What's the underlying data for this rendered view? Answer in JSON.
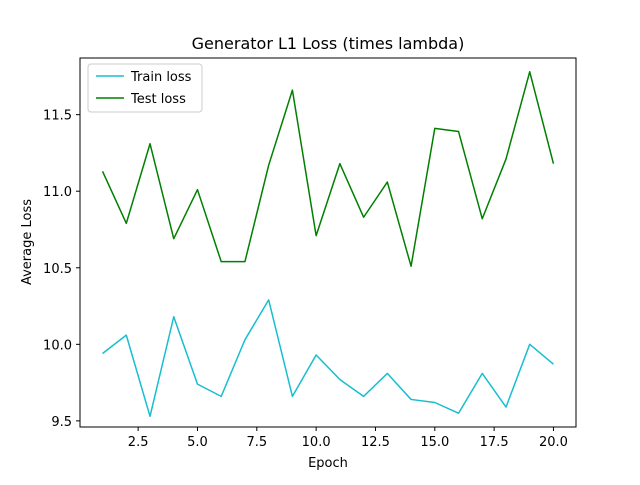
{
  "chart_data": {
    "type": "line",
    "title": "Generator L1 Loss (times lambda)",
    "xlabel": "Epoch",
    "ylabel": "Average Loss",
    "xlim": [
      0.05,
      20.95
    ],
    "ylim": [
      9.46,
      11.87
    ],
    "xticks": [
      2.5,
      5.0,
      7.5,
      10.0,
      12.5,
      15.0,
      17.5,
      20.0
    ],
    "xtick_labels": [
      "2.5",
      "5.0",
      "7.5",
      "10.0",
      "12.5",
      "15.0",
      "17.5",
      "20.0"
    ],
    "yticks": [
      9.5,
      10.0,
      10.5,
      11.0,
      11.5
    ],
    "ytick_labels": [
      "9.5",
      "10.0",
      "10.5",
      "11.0",
      "11.5"
    ],
    "grid": false,
    "legend_position": "top-left",
    "x": [
      1,
      2,
      3,
      4,
      5,
      6,
      7,
      8,
      9,
      10,
      11,
      12,
      13,
      14,
      15,
      16,
      17,
      18,
      19,
      20
    ],
    "series": [
      {
        "name": "Train loss",
        "color": "#17becf",
        "values": [
          9.94,
          10.06,
          9.53,
          10.18,
          9.74,
          9.66,
          10.03,
          10.29,
          9.66,
          9.93,
          9.77,
          9.66,
          9.81,
          9.64,
          9.62,
          9.55,
          9.81,
          9.59,
          10.0,
          9.87
        ]
      },
      {
        "name": "Test loss",
        "color": "#008000",
        "values": [
          11.13,
          10.79,
          11.31,
          10.69,
          11.01,
          10.54,
          10.54,
          11.17,
          11.66,
          10.71,
          11.18,
          10.83,
          11.06,
          10.51,
          11.41,
          11.39,
          10.82,
          11.21,
          11.78,
          11.18
        ]
      }
    ]
  }
}
